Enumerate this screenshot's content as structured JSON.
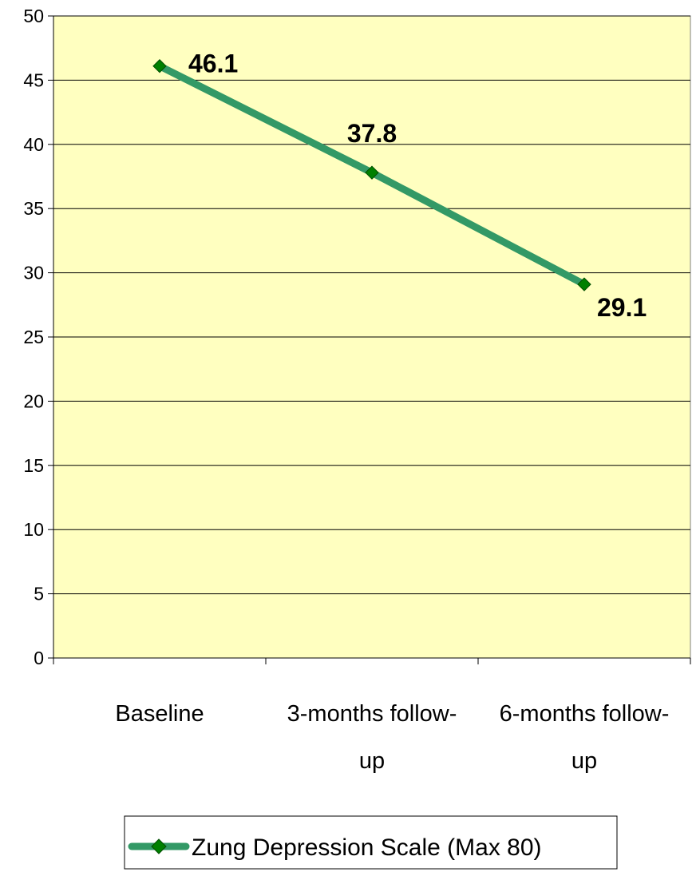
{
  "chart_data": {
    "type": "line",
    "categories": [
      "Baseline",
      "3-months follow-up",
      "6-months follow-up"
    ],
    "category_lines": [
      [
        "Baseline"
      ],
      [
        "3-months follow-",
        "up"
      ],
      [
        "6-months follow-",
        "up"
      ]
    ],
    "series": [
      {
        "name": "Zung Depression Scale (Max 80)",
        "values": [
          46.1,
          37.8,
          29.1
        ],
        "data_labels": [
          "46.1",
          "37.8",
          "29.1"
        ]
      }
    ],
    "ylim": [
      0,
      50
    ],
    "yticks": [
      "0",
      "5",
      "10",
      "15",
      "20",
      "25",
      "30",
      "35",
      "40",
      "45",
      "50"
    ],
    "grid": "horizontal",
    "legend_position": "bottom",
    "colors": {
      "plot_background": "#FFFFC0",
      "line": "#339966",
      "marker": "#008000",
      "gridline": "#000000"
    }
  }
}
